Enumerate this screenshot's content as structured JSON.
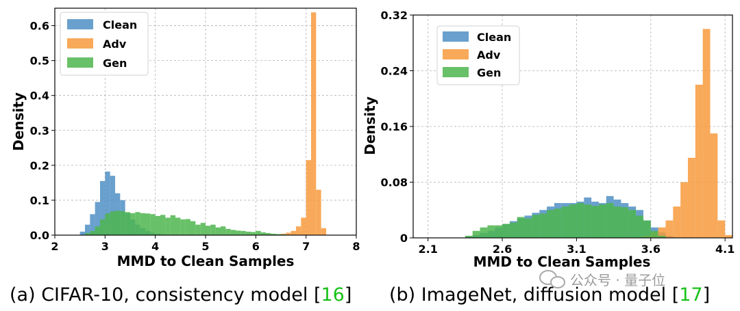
{
  "colors": {
    "Clean": "#4f8fc4",
    "Adv": "#f79a3c",
    "Gen": "#4eb54e"
  },
  "chart_data": [
    {
      "type": "histogram",
      "xlabel": "MMD to Clean Samples",
      "ylabel": "Density",
      "xlim": [
        2,
        8
      ],
      "ylim": [
        0,
        0.65
      ],
      "xticks": [
        "2",
        "3",
        "4",
        "5",
        "6",
        "7",
        "8"
      ],
      "yticks": [
        "0.0",
        "0.1",
        "0.2",
        "0.3",
        "0.4",
        "0.5",
        "0.6"
      ],
      "grid": true,
      "legend_position": "top-left",
      "series": [
        {
          "name": "Clean",
          "bins": [
            [
              2.5,
              2.6,
              0.01
            ],
            [
              2.6,
              2.7,
              0.03
            ],
            [
              2.7,
              2.8,
              0.06
            ],
            [
              2.8,
              2.9,
              0.095
            ],
            [
              2.9,
              3.0,
              0.155
            ],
            [
              3.0,
              3.1,
              0.182
            ],
            [
              3.1,
              3.2,
              0.17
            ],
            [
              3.2,
              3.3,
              0.12
            ],
            [
              3.3,
              3.4,
              0.1
            ],
            [
              3.4,
              3.5,
              0.063
            ],
            [
              3.5,
              3.6,
              0.045
            ],
            [
              3.6,
              3.7,
              0.03
            ],
            [
              3.7,
              3.8,
              0.02
            ],
            [
              3.8,
              3.9,
              0.012
            ],
            [
              3.9,
              4.0,
              0.007
            ],
            [
              4.0,
              4.1,
              0.004
            ],
            [
              4.1,
              4.2,
              0.002
            ]
          ]
        },
        {
          "name": "Adv",
          "bins": [
            [
              6.4,
              6.5,
              0.002
            ],
            [
              6.5,
              6.6,
              0.004
            ],
            [
              6.6,
              6.7,
              0.007
            ],
            [
              6.7,
              6.8,
              0.012
            ],
            [
              6.8,
              6.9,
              0.025
            ],
            [
              6.9,
              7.0,
              0.05
            ],
            [
              7.0,
              7.1,
              0.215
            ],
            [
              7.1,
              7.2,
              0.638
            ],
            [
              7.2,
              7.3,
              0.13
            ],
            [
              7.3,
              7.4,
              0.02
            ]
          ]
        },
        {
          "name": "Gen",
          "bins": [
            [
              2.6,
              2.7,
              0.006
            ],
            [
              2.7,
              2.8,
              0.012
            ],
            [
              2.8,
              2.9,
              0.025
            ],
            [
              2.9,
              3.0,
              0.045
            ],
            [
              3.0,
              3.1,
              0.062
            ],
            [
              3.1,
              3.2,
              0.068
            ],
            [
              3.2,
              3.3,
              0.07
            ],
            [
              3.3,
              3.4,
              0.069
            ],
            [
              3.4,
              3.5,
              0.066
            ],
            [
              3.5,
              3.6,
              0.063
            ],
            [
              3.6,
              3.7,
              0.066
            ],
            [
              3.7,
              3.8,
              0.063
            ],
            [
              3.8,
              3.9,
              0.062
            ],
            [
              3.9,
              4.0,
              0.06
            ],
            [
              4.0,
              4.1,
              0.055
            ],
            [
              4.1,
              4.2,
              0.058
            ],
            [
              4.2,
              4.3,
              0.05
            ],
            [
              4.3,
              4.4,
              0.057
            ],
            [
              4.4,
              4.5,
              0.05
            ],
            [
              4.5,
              4.6,
              0.045
            ],
            [
              4.6,
              4.7,
              0.046
            ],
            [
              4.7,
              4.8,
              0.04
            ],
            [
              4.8,
              4.9,
              0.03
            ],
            [
              4.9,
              5.0,
              0.035
            ],
            [
              5.0,
              5.1,
              0.027
            ],
            [
              5.1,
              5.2,
              0.03
            ],
            [
              5.2,
              5.3,
              0.022
            ],
            [
              5.3,
              5.4,
              0.025
            ],
            [
              5.4,
              5.5,
              0.018
            ],
            [
              5.5,
              5.6,
              0.015
            ],
            [
              5.6,
              5.7,
              0.013
            ],
            [
              5.7,
              5.8,
              0.012
            ],
            [
              5.8,
              5.9,
              0.01
            ],
            [
              5.9,
              6.0,
              0.009
            ],
            [
              6.0,
              6.1,
              0.012
            ],
            [
              6.1,
              6.2,
              0.008
            ],
            [
              6.2,
              6.3,
              0.006
            ],
            [
              6.3,
              6.4,
              0.004
            ],
            [
              6.4,
              6.5,
              0.003
            ],
            [
              6.5,
              6.6,
              0.002
            ]
          ]
        }
      ]
    },
    {
      "type": "histogram",
      "xlabel": "MMD to Clean Samples",
      "ylabel": "Density",
      "xlim": [
        2.0,
        4.15
      ],
      "ylim": [
        0,
        0.32
      ],
      "xticks": [
        "2.1",
        "2.6",
        "3.1",
        "3.6",
        "4.1"
      ],
      "yticks": [
        "0",
        "0.08",
        "0.16",
        "0.24",
        "0.32"
      ],
      "grid": true,
      "legend_position": "top-left",
      "series": [
        {
          "name": "Clean",
          "bins": [
            [
              2.35,
              2.4,
              0.002
            ],
            [
              2.4,
              2.45,
              0.004
            ],
            [
              2.45,
              2.5,
              0.007
            ],
            [
              2.5,
              2.55,
              0.01
            ],
            [
              2.55,
              2.6,
              0.015
            ],
            [
              2.6,
              2.65,
              0.02
            ],
            [
              2.65,
              2.7,
              0.024
            ],
            [
              2.7,
              2.75,
              0.028
            ],
            [
              2.75,
              2.8,
              0.032
            ],
            [
              2.8,
              2.85,
              0.036
            ],
            [
              2.85,
              2.9,
              0.04
            ],
            [
              2.9,
              2.95,
              0.045
            ],
            [
              2.95,
              3.0,
              0.05
            ],
            [
              3.0,
              3.05,
              0.05
            ],
            [
              3.05,
              3.1,
              0.05
            ],
            [
              3.1,
              3.15,
              0.052
            ],
            [
              3.15,
              3.2,
              0.058
            ],
            [
              3.2,
              3.25,
              0.052
            ],
            [
              3.25,
              3.3,
              0.05
            ],
            [
              3.3,
              3.35,
              0.06
            ],
            [
              3.35,
              3.4,
              0.055
            ],
            [
              3.4,
              3.45,
              0.05
            ],
            [
              3.45,
              3.5,
              0.045
            ],
            [
              3.5,
              3.55,
              0.04
            ],
            [
              3.55,
              3.6,
              0.025
            ],
            [
              3.6,
              3.65,
              0.015
            ],
            [
              3.65,
              3.7,
              0.008
            ],
            [
              3.7,
              3.75,
              0.003
            ]
          ]
        },
        {
          "name": "Adv",
          "bins": [
            [
              3.55,
              3.6,
              0.003
            ],
            [
              3.6,
              3.65,
              0.008
            ],
            [
              3.65,
              3.7,
              0.015
            ],
            [
              3.7,
              3.75,
              0.025
            ],
            [
              3.75,
              3.8,
              0.045
            ],
            [
              3.8,
              3.85,
              0.08
            ],
            [
              3.85,
              3.9,
              0.115
            ],
            [
              3.9,
              3.95,
              0.22
            ],
            [
              3.95,
              4.0,
              0.3
            ],
            [
              4.0,
              4.05,
              0.15
            ],
            [
              4.05,
              4.1,
              0.025
            ],
            [
              4.1,
              4.15,
              0.004
            ]
          ]
        },
        {
          "name": "Gen",
          "bins": [
            [
              2.35,
              2.4,
              0.003
            ],
            [
              2.4,
              2.45,
              0.01
            ],
            [
              2.45,
              2.5,
              0.015
            ],
            [
              2.5,
              2.55,
              0.018
            ],
            [
              2.55,
              2.6,
              0.018
            ],
            [
              2.6,
              2.65,
              0.02
            ],
            [
              2.65,
              2.7,
              0.022
            ],
            [
              2.7,
              2.75,
              0.03
            ],
            [
              2.75,
              2.8,
              0.028
            ],
            [
              2.8,
              2.85,
              0.033
            ],
            [
              2.85,
              2.9,
              0.035
            ],
            [
              2.9,
              2.95,
              0.04
            ],
            [
              2.95,
              3.0,
              0.042
            ],
            [
              3.0,
              3.05,
              0.045
            ],
            [
              3.05,
              3.1,
              0.048
            ],
            [
              3.1,
              3.15,
              0.05
            ],
            [
              3.15,
              3.2,
              0.048
            ],
            [
              3.2,
              3.25,
              0.046
            ],
            [
              3.25,
              3.3,
              0.048
            ],
            [
              3.3,
              3.35,
              0.05
            ],
            [
              3.35,
              3.4,
              0.045
            ],
            [
              3.4,
              3.45,
              0.044
            ],
            [
              3.45,
              3.5,
              0.04
            ],
            [
              3.5,
              3.55,
              0.032
            ],
            [
              3.55,
              3.6,
              0.025
            ],
            [
              3.6,
              3.65,
              0.01
            ],
            [
              3.65,
              3.7,
              0.003
            ]
          ]
        }
      ]
    }
  ],
  "captions": [
    {
      "text": "(a) CIFAR-10, consistency model [",
      "ref": "16",
      "close": "]"
    },
    {
      "text": "(b) ImageNet, diffusion model [",
      "ref": "17",
      "close": "]"
    }
  ],
  "watermark": "公众号 · 量子位"
}
